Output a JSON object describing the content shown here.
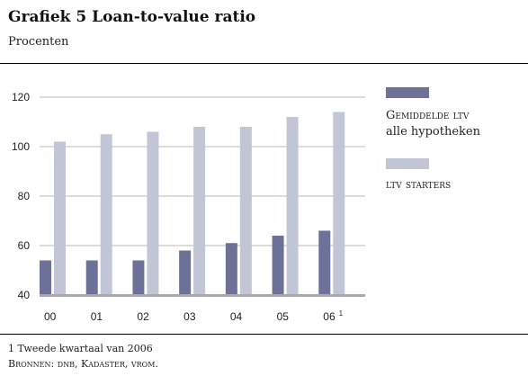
{
  "header": {
    "title": "Grafiek 5  Loan-to-value ratio",
    "subtitle": "Procenten"
  },
  "legend": {
    "item1_line1": "Gemiddelde ltv",
    "item1_line2": "alle hypotheken",
    "item2": "ltv starters"
  },
  "footnotes": {
    "note1": "1  Tweede kwartaal van 2006",
    "sources": "Bronnen: dnb, Kadaster, vrom."
  },
  "chart_data": {
    "type": "bar",
    "title": "Grafiek 5  Loan-to-value ratio",
    "subtitle": "Procenten",
    "categories": [
      "00",
      "01",
      "02",
      "03",
      "04",
      "05",
      "06"
    ],
    "category_superscripts": [
      "",
      "",
      "",
      "",
      "",
      "",
      "1"
    ],
    "series": [
      {
        "name": "Gemiddelde ltv alle hypotheken",
        "color": "#6e7197",
        "values": [
          54,
          54,
          54,
          58,
          61,
          64,
          66
        ]
      },
      {
        "name": "ltv starters",
        "color": "#c2c5d5",
        "values": [
          102,
          105,
          106,
          108,
          108,
          112,
          114
        ]
      }
    ],
    "ylim": [
      40,
      120
    ],
    "yticks": [
      40,
      60,
      80,
      100,
      120
    ],
    "xlabel": "",
    "ylabel": "",
    "grid": true,
    "legend_position": "right"
  }
}
